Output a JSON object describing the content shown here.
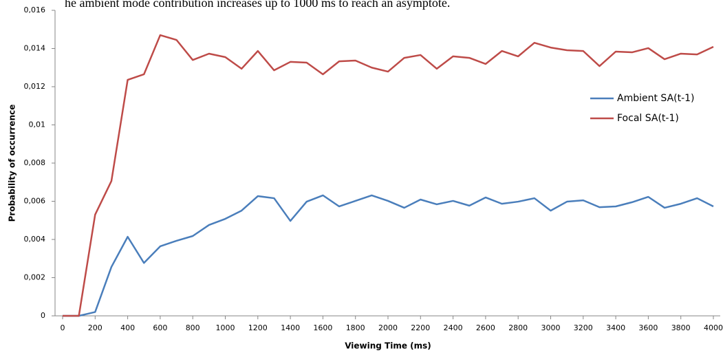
{
  "chart_data": {
    "type": "line",
    "annotation": "he ambient mode contribution increases up to 1000 ms to reach an asymptote.",
    "x_label": "Viewing Time (ms)",
    "y_label": "Probability of occurrence",
    "x": [
      0,
      100,
      200,
      300,
      400,
      500,
      600,
      700,
      800,
      900,
      1000,
      1100,
      1200,
      1300,
      1400,
      1500,
      1600,
      1700,
      1800,
      1900,
      2000,
      2100,
      2200,
      2300,
      2400,
      2500,
      2600,
      2700,
      2800,
      2900,
      3000,
      3100,
      3200,
      3300,
      3400,
      3500,
      3600,
      3700,
      3800,
      3900,
      4000
    ],
    "series": [
      {
        "name": "Ambient SA(t-1)",
        "color": "#4a7ebb",
        "values": [
          0,
          0,
          0.0002,
          0.00256,
          0.00414,
          0.00277,
          0.00364,
          0.00393,
          0.00418,
          0.00476,
          0.00508,
          0.00551,
          0.00627,
          0.00616,
          0.00497,
          0.00598,
          0.00631,
          0.00573,
          0.00602,
          0.00631,
          0.00602,
          0.00566,
          0.00609,
          0.00584,
          0.00602,
          0.00577,
          0.0062,
          0.00587,
          0.00598,
          0.00616,
          0.00551,
          0.00598,
          0.00605,
          0.00569,
          0.00573,
          0.00595,
          0.00623,
          0.00566,
          0.00587,
          0.00616,
          0.00573
        ]
      },
      {
        "name": "Focal SA(t-1)",
        "color": "#be4b48",
        "values": [
          0,
          0,
          0.0053,
          0.00706,
          0.01236,
          0.01265,
          0.0147,
          0.01445,
          0.0134,
          0.01373,
          0.01355,
          0.01294,
          0.01387,
          0.01286,
          0.0133,
          0.01326,
          0.01265,
          0.01333,
          0.01337,
          0.013,
          0.01279,
          0.01351,
          0.01366,
          0.01294,
          0.01359,
          0.01351,
          0.01319,
          0.01387,
          0.01359,
          0.0143,
          0.01405,
          0.01391,
          0.01387,
          0.01308,
          0.01384,
          0.0138,
          0.01402,
          0.01344,
          0.01373,
          0.01369,
          0.01409
        ]
      }
    ],
    "xlim": [
      0,
      4000
    ],
    "xticks": [
      0,
      200,
      400,
      600,
      800,
      1000,
      1200,
      1400,
      1600,
      1800,
      2000,
      2200,
      2400,
      2600,
      2800,
      3000,
      3200,
      3400,
      3600,
      3800,
      4000
    ],
    "ylim": [
      0,
      0.016
    ],
    "yticks": [
      0,
      {
        "value": 0.002,
        "label": "0,002"
      },
      {
        "value": 0.004,
        "label": "0,004"
      },
      {
        "value": 0.006,
        "label": "0,006"
      },
      {
        "value": 0.008,
        "label": "0,008"
      },
      {
        "value": 0.01,
        "label": "0,01"
      },
      {
        "value": 0.012,
        "label": "0,012"
      },
      {
        "value": 0.014,
        "label": "0,014"
      },
      {
        "value": 0.016,
        "label": "0,016"
      }
    ],
    "grid": false,
    "legend": "right"
  }
}
